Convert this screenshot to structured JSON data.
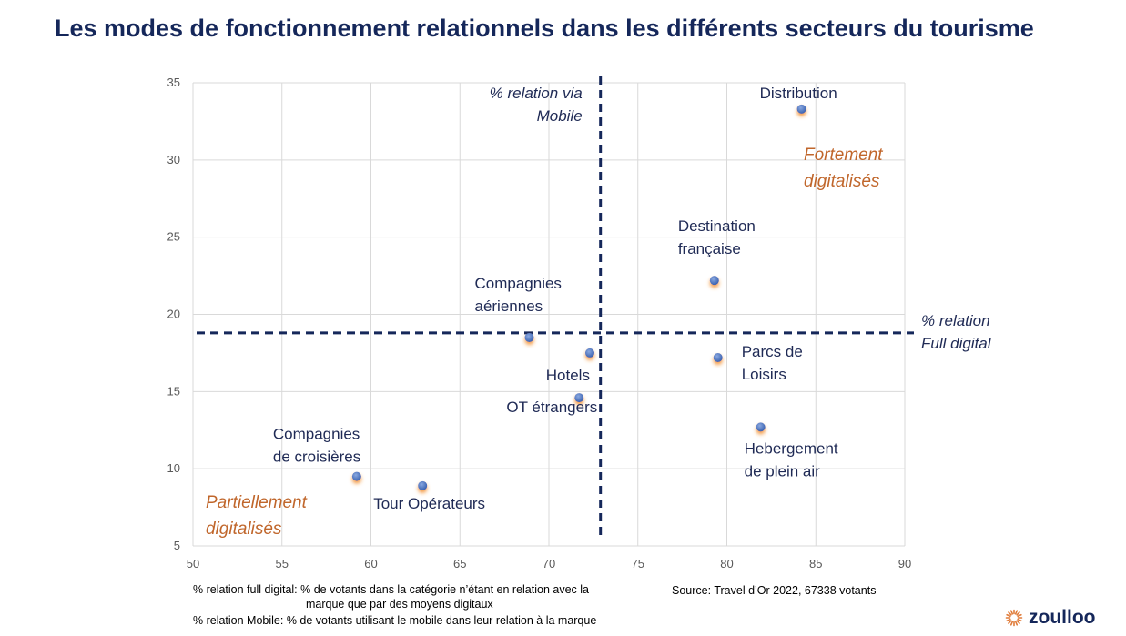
{
  "title": "Les modes de fonctionnement relationnels dans les différents secteurs du tourisme",
  "chart_data": {
    "type": "scatter",
    "title": "Les modes de fonctionnement relationnels dans les différents secteurs du tourisme",
    "xlim": [
      50,
      90
    ],
    "ylim": [
      5,
      35
    ],
    "xticks": [
      50,
      55,
      60,
      65,
      70,
      75,
      80,
      85,
      90
    ],
    "yticks": [
      5,
      10,
      15,
      20,
      25,
      30,
      35
    ],
    "grid": true,
    "point_color": "#4472c4",
    "points": [
      {
        "label": [
          "Distribution"
        ],
        "x": 84.2,
        "y": 33.3
      },
      {
        "label": [
          "Destination",
          "française"
        ],
        "x": 79.3,
        "y": 22.2
      },
      {
        "label": [
          "Compagnies",
          "aériennes"
        ],
        "x": 68.9,
        "y": 18.5
      },
      {
        "label": [
          "Hotels"
        ],
        "x": 72.3,
        "y": 17.5
      },
      {
        "label": [
          "Parcs de",
          "Loisirs"
        ],
        "x": 79.5,
        "y": 17.2
      },
      {
        "label": [
          "OT étrangers"
        ],
        "x": 71.7,
        "y": 14.6
      },
      {
        "label": [
          "Hebergement",
          "de plein air"
        ],
        "x": 81.9,
        "y": 12.7
      },
      {
        "label": [
          "Compagnies",
          "de croisières"
        ],
        "x": 59.2,
        "y": 9.5
      },
      {
        "label": [
          "Tour Opérateurs"
        ],
        "x": 62.9,
        "y": 8.9
      }
    ],
    "reference_lines": [
      {
        "orientation": "vertical",
        "x": 72.9,
        "label": [
          "% relation via",
          "Mobile"
        ]
      },
      {
        "orientation": "horizontal",
        "y": 18.8,
        "label": [
          "% relation",
          "Full digital"
        ]
      }
    ],
    "quadrant_labels": [
      {
        "text": [
          "Fortement",
          "digitalisés"
        ],
        "position": "top-right"
      },
      {
        "text": [
          "Partiellement",
          "digitalisés"
        ],
        "position": "bottom-left"
      }
    ]
  },
  "notes": {
    "full_digital_line1": "% relation full digital: % de votants dans la catégorie n’étant en relation avec la",
    "full_digital_line2": "marque que par des moyens digitaux",
    "mobile": "% relation Mobile: % de votants utilisant le mobile dans leur relation à la marque",
    "source": "Source: Travel d’Or 2022, 67338 votants"
  },
  "logo": {
    "text": "zoulloo",
    "icon": "sunburst-icon",
    "color": "#e07b39"
  }
}
